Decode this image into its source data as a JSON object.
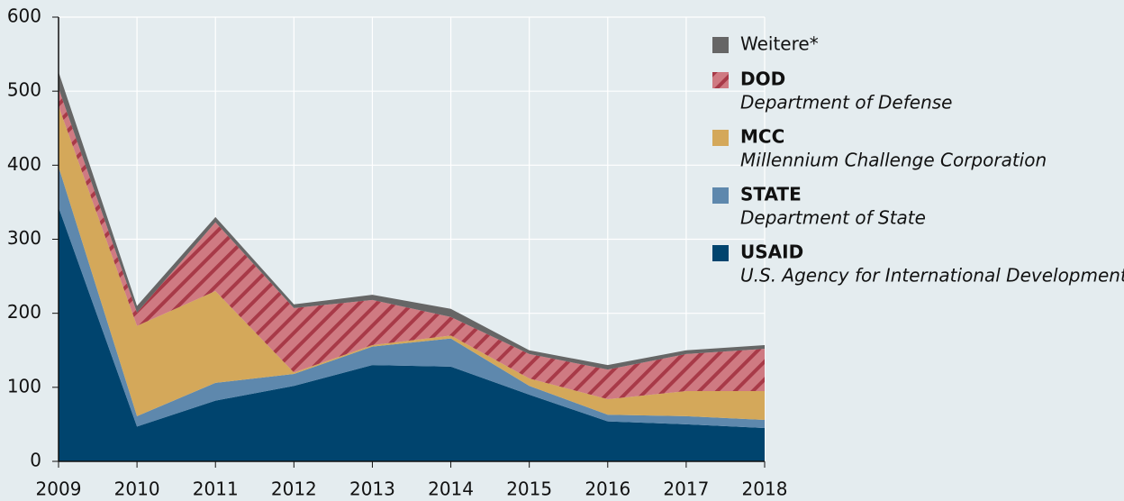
{
  "chart_data": {
    "type": "area",
    "stacked": true,
    "categories": [
      "2009",
      "2010",
      "2011",
      "2012",
      "2013",
      "2014",
      "2015",
      "2016",
      "2017",
      "2018"
    ],
    "series": [
      {
        "name": "USAID",
        "description": "U.S. Agency for International Development",
        "color": "#00446e",
        "values": [
          343,
          47,
          82,
          102,
          130,
          128,
          90,
          54,
          50,
          45
        ]
      },
      {
        "name": "STATE",
        "description": "Department of State",
        "color": "#5e88ad",
        "values": [
          55,
          14,
          24,
          16,
          25,
          38,
          12,
          9,
          11,
          11
        ]
      },
      {
        "name": "MCC",
        "description": "Millennium Challenge Corporation",
        "color": "#d4a85a",
        "values": [
          82,
          122,
          124,
          2,
          2,
          4,
          10,
          21,
          34,
          39
        ]
      },
      {
        "name": "DOD",
        "description": "Department of Defense",
        "color": "#cf7a82",
        "hatch": true,
        "hatch_color": "#a83a48",
        "values": [
          24,
          18,
          93,
          87,
          61,
          25,
          33,
          40,
          50,
          57
        ]
      },
      {
        "name": "Weitere*",
        "color": "#666666",
        "values": [
          22,
          9,
          7,
          5,
          7,
          11,
          5,
          6,
          5,
          5
        ]
      }
    ],
    "ylim": [
      0,
      600
    ],
    "yticks": [
      0,
      100,
      200,
      300,
      400,
      500,
      600
    ],
    "grid": true,
    "legend": "right"
  }
}
